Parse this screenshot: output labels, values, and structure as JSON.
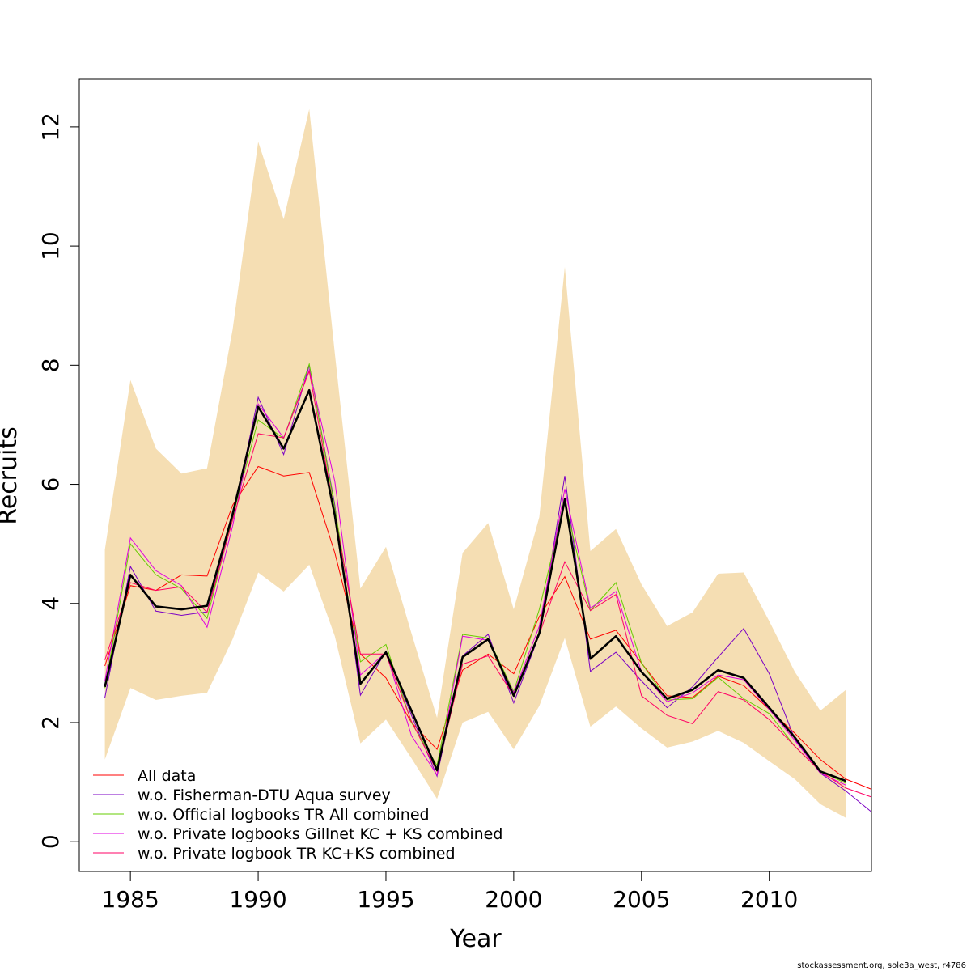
{
  "chart_data": {
    "type": "line",
    "xlabel": "Year",
    "ylabel": "Recruits",
    "xlim": [
      1983,
      2014
    ],
    "ylim": [
      -0.5,
      12.8
    ],
    "x_ticks": [
      1985,
      1990,
      1995,
      2000,
      2005,
      2010
    ],
    "y_ticks": [
      0,
      2,
      4,
      6,
      8,
      10,
      12
    ],
    "grid": false,
    "legend_position": "bottom-left",
    "band_color": "#f5deb3",
    "x": [
      1984,
      1985,
      1986,
      1987,
      1988,
      1989,
      1990,
      1991,
      1992,
      1993,
      1994,
      1995,
      1996,
      1997,
      1998,
      1999,
      2000,
      2001,
      2002,
      2003,
      2004,
      2005,
      2006,
      2007,
      2008,
      2009,
      2010,
      2011,
      2012,
      2013
    ],
    "band_upper": [
      4.9,
      7.75,
      6.6,
      6.18,
      6.27,
      8.6,
      11.75,
      10.45,
      12.3,
      8.2,
      4.25,
      4.95,
      3.5,
      2.08,
      4.85,
      5.35,
      3.9,
      5.45,
      9.65,
      4.88,
      5.25,
      4.32,
      3.62,
      3.85,
      4.5,
      4.52,
      3.7,
      2.85,
      2.2,
      2.55
    ],
    "band_lower": [
      1.38,
      2.58,
      2.38,
      2.45,
      2.5,
      3.4,
      4.52,
      4.2,
      4.65,
      3.45,
      1.65,
      2.05,
      1.4,
      0.72,
      2.0,
      2.18,
      1.55,
      2.28,
      3.42,
      1.93,
      2.27,
      1.9,
      1.58,
      1.68,
      1.86,
      1.66,
      1.35,
      1.05,
      0.63,
      0.4
    ],
    "main_series": {
      "name": "",
      "color": "#000000",
      "values": [
        2.6,
        4.48,
        3.95,
        3.9,
        3.96,
        5.5,
        7.3,
        6.6,
        7.58,
        5.48,
        2.65,
        3.18,
        2.2,
        1.2,
        3.1,
        3.4,
        2.45,
        3.5,
        5.75,
        3.07,
        3.45,
        2.85,
        2.4,
        2.55,
        2.88,
        2.75,
        2.25,
        1.75,
        1.18,
        1.02
      ],
      "extra_x": [],
      "extra_values": []
    },
    "series": [
      {
        "name": "All data",
        "color": "#ff0000",
        "values": [
          2.95,
          4.3,
          4.22,
          4.48,
          4.46,
          5.65,
          6.3,
          6.14,
          6.2,
          4.85,
          3.15,
          2.75,
          2.0,
          1.55,
          2.88,
          3.15,
          2.82,
          3.78,
          4.45,
          3.4,
          3.55,
          3.0,
          2.45,
          2.42,
          2.78,
          2.62,
          2.22,
          1.82,
          1.38,
          1.05
        ],
        "extra_x": [
          2014
        ],
        "extra_values": [
          0.88
        ]
      },
      {
        "name": "w.o. Fisherman-DTU Aqua survey",
        "color": "#7b00c4",
        "values": [
          2.42,
          4.62,
          3.87,
          3.8,
          3.86,
          5.42,
          7.46,
          6.5,
          8.0,
          5.65,
          2.46,
          3.2,
          2.12,
          1.1,
          3.12,
          3.48,
          2.33,
          3.48,
          6.14,
          2.86,
          3.18,
          2.7,
          2.25,
          2.6,
          3.1,
          3.58,
          2.82,
          1.72,
          1.15,
          0.85
        ],
        "extra_x": [
          2014
        ],
        "extra_values": [
          0.5
        ]
      },
      {
        "name": "w.o. Official logbooks TR All combined",
        "color": "#66cc00",
        "values": [
          2.58,
          5.0,
          4.48,
          4.25,
          3.75,
          5.45,
          7.08,
          6.77,
          8.02,
          5.6,
          3.02,
          3.31,
          2.0,
          1.28,
          3.48,
          3.42,
          2.52,
          3.9,
          5.72,
          3.88,
          4.35,
          3.0,
          2.38,
          2.4,
          2.76,
          2.4,
          2.15,
          1.6,
          1.18,
          0.98
        ],
        "extra_x": [],
        "extra_values": []
      },
      {
        "name": "w.o. Private logbooks Gillnet KC + KS combined",
        "color": "#e000e0",
        "values": [
          2.7,
          5.1,
          4.55,
          4.3,
          3.6,
          5.3,
          7.35,
          6.78,
          7.92,
          6.05,
          2.8,
          3.18,
          1.78,
          1.12,
          3.45,
          3.38,
          2.5,
          3.62,
          5.92,
          3.92,
          4.2,
          2.85,
          2.35,
          2.5,
          2.8,
          2.72,
          2.22,
          1.7,
          1.15,
          0.95
        ],
        "extra_x": [],
        "extra_values": []
      },
      {
        "name": "w.o. Private logbook TR KC+KS combined",
        "color": "#ff0066",
        "values": [
          3.05,
          4.35,
          4.22,
          4.28,
          3.85,
          5.4,
          6.85,
          6.78,
          7.9,
          5.5,
          3.15,
          3.15,
          2.02,
          1.18,
          2.98,
          3.12,
          2.45,
          3.48,
          4.7,
          3.88,
          4.15,
          2.45,
          2.12,
          1.98,
          2.52,
          2.38,
          2.05,
          1.6,
          1.18,
          0.9
        ],
        "extra_x": [
          2014
        ],
        "extra_values": [
          0.75
        ]
      }
    ]
  },
  "footer": {
    "text": "stockassessment.org, sole3a_west, r4786"
  }
}
